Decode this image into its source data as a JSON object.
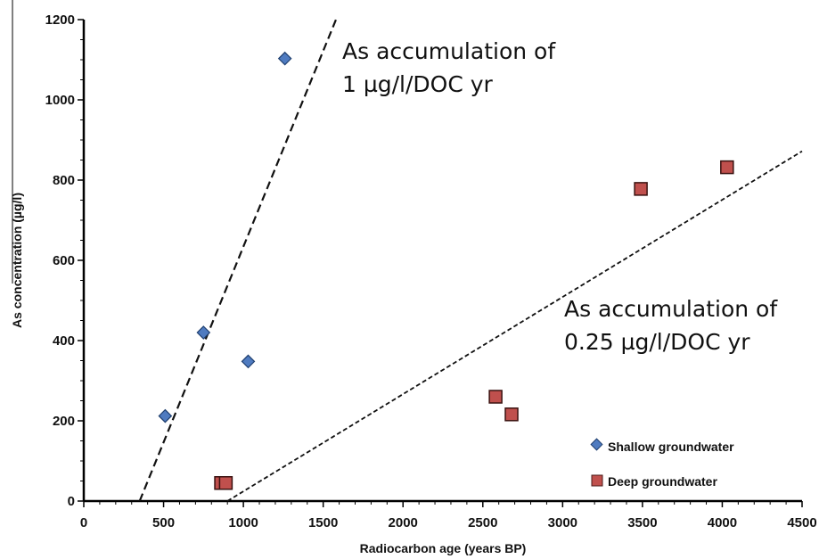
{
  "chart_data": {
    "type": "scatter",
    "xlabel": "Radiocarbon age (years BP)",
    "ylabel": "As concentration (µg/l)",
    "xlim": [
      0,
      4500
    ],
    "ylim": [
      0,
      1200
    ],
    "xticks": [
      0,
      500,
      1000,
      1500,
      2000,
      2500,
      3000,
      3500,
      4000,
      4500
    ],
    "yticks": [
      0,
      200,
      400,
      600,
      800,
      1000,
      1200
    ],
    "grid": false,
    "legend_position": "bottom-right",
    "series": [
      {
        "name": "Shallow groundwater",
        "marker": "diamond",
        "color": "#4f7bc0",
        "points": [
          {
            "x": 510,
            "y": 212
          },
          {
            "x": 750,
            "y": 420
          },
          {
            "x": 1030,
            "y": 348
          },
          {
            "x": 1260,
            "y": 1103
          }
        ]
      },
      {
        "name": "Deep groundwater",
        "marker": "square",
        "color": "#c0504d",
        "points": [
          {
            "x": 860,
            "y": 45
          },
          {
            "x": 890,
            "y": 45
          },
          {
            "x": 2580,
            "y": 260
          },
          {
            "x": 2680,
            "y": 216
          },
          {
            "x": 3490,
            "y": 778
          },
          {
            "x": 4030,
            "y": 832
          }
        ]
      }
    ],
    "reference_lines": [
      {
        "label_line1": "As accumulation of",
        "label_line2": "1 µg/l/DOC yr",
        "x1": 350,
        "y1": 0,
        "x2": 1580,
        "y2": 1200
      },
      {
        "label_line1": "As accumulation of",
        "label_line2": "0.25 µg/l/DOC yr",
        "x1": 900,
        "y1": 0,
        "x2": 4500,
        "y2": 872
      }
    ]
  }
}
